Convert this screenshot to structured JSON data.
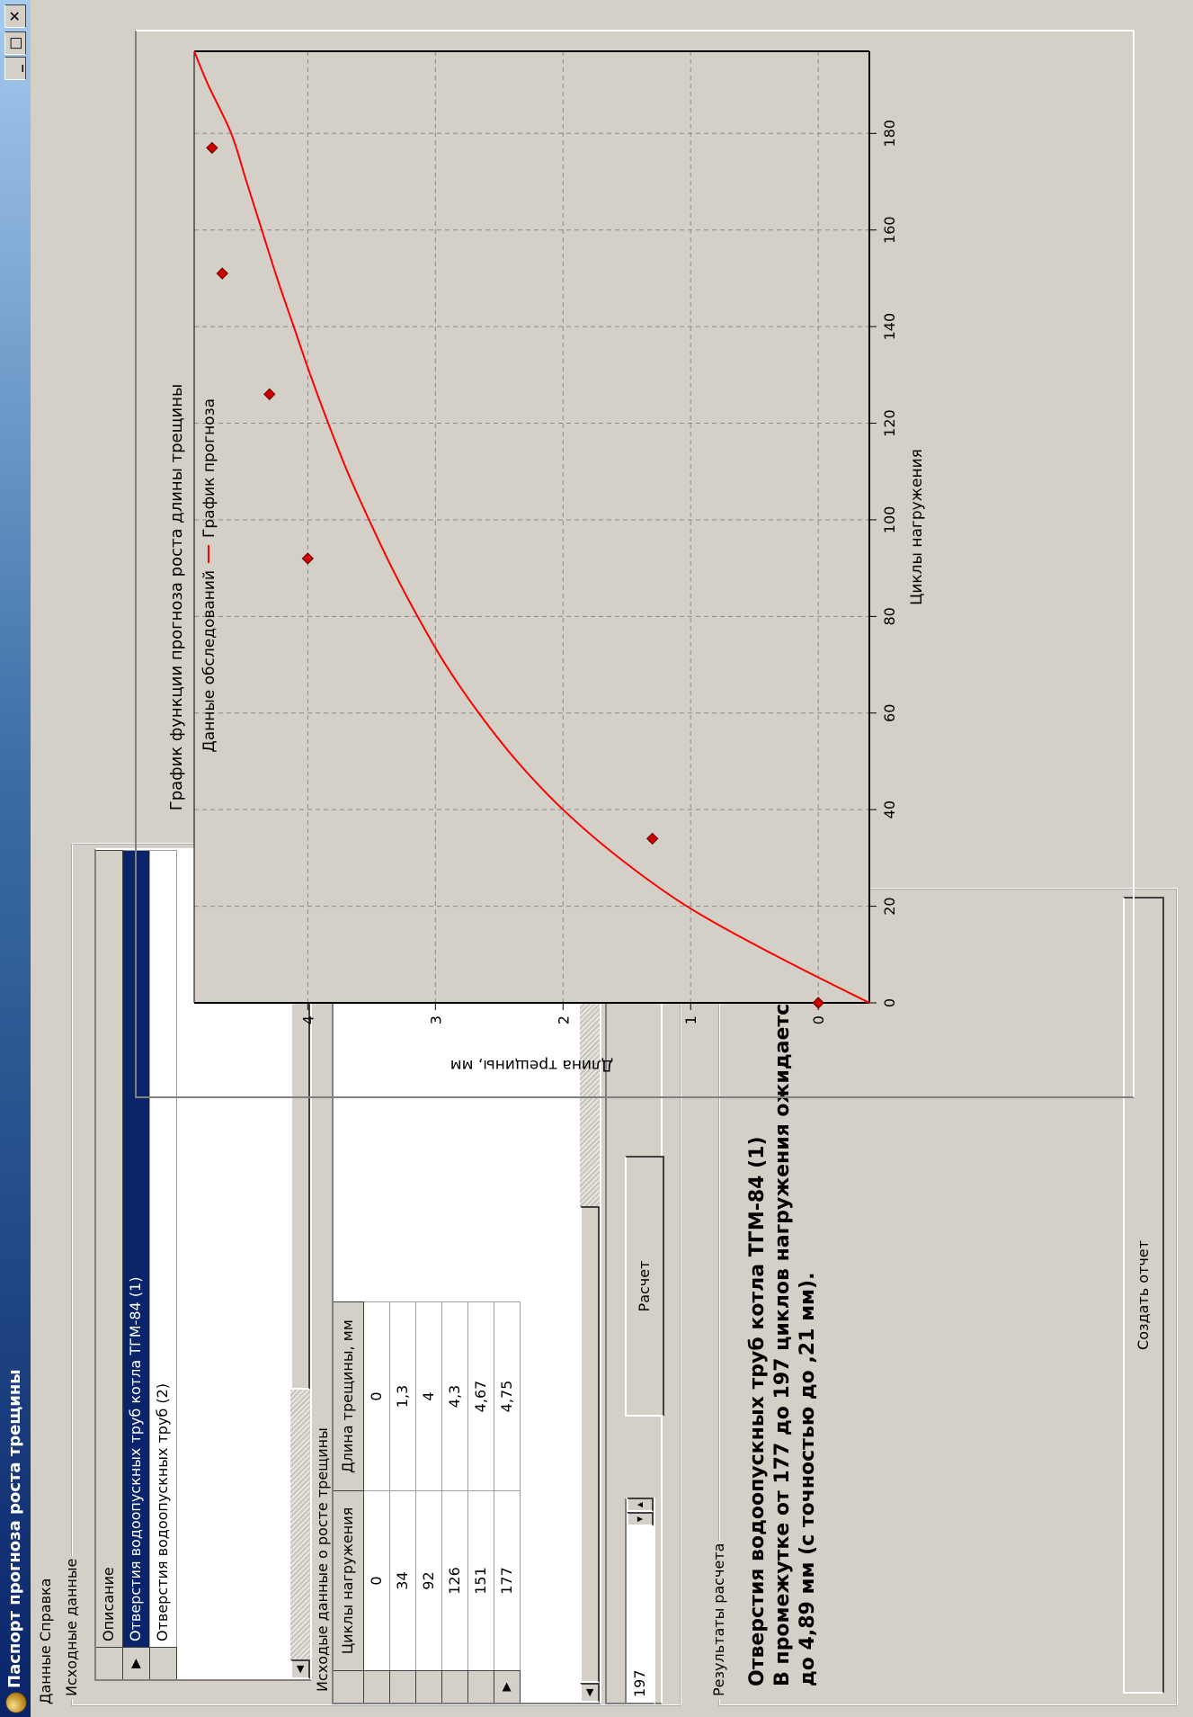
{
  "window": {
    "title": "Паспорт прогноза роста трещины"
  },
  "menu": [
    "Данные",
    "Справка"
  ],
  "source_group": {
    "label": "Исходные данные",
    "column_header": "Описание",
    "rows": [
      "Отверстия водоопускных труб котла ТГМ-84 (1)",
      "Отверстия водоопускных труб (2)"
    ]
  },
  "grid": {
    "label": "Исходые данные о росте трещины",
    "headers": [
      "Циклы нагружения",
      "Длина трещины, мм"
    ],
    "rows": [
      [
        "0",
        "0"
      ],
      [
        "34",
        "1,3"
      ],
      [
        "92",
        "4"
      ],
      [
        "126",
        "4,3"
      ],
      [
        "151",
        "4,67"
      ],
      [
        "177",
        "4,75"
      ]
    ]
  },
  "cycles_spin": {
    "value": "197"
  },
  "buttons": {
    "calc": "Расчет",
    "report": "Создать отчет"
  },
  "results": {
    "label": "Результаты расчета",
    "text": "Отверстия водоопускных труб котла ТГМ-84 (1)\nВ промежутке от 177 до 197 циклов нагружения ожидается рост трещины до 4,89 мм (с точностью до ,21 мм)."
  },
  "chart_data": {
    "type": "scatter",
    "title": "График функции прогноза роста длины трещины",
    "xlabel": "Циклы нагружения",
    "ylabel": "Длина трещины, мм",
    "xlim": [
      0,
      197
    ],
    "ylim": [
      -0.4,
      4.89
    ],
    "xticks": [
      0,
      20,
      40,
      60,
      80,
      100,
      120,
      140,
      160,
      180
    ],
    "yticks": [
      0,
      1,
      2,
      3,
      4
    ],
    "grid": true,
    "legend_position": "top",
    "series": [
      {
        "name": "Данные обследований",
        "kind": "points",
        "color": "#cc0000",
        "x": [
          0,
          34,
          92,
          126,
          151,
          177
        ],
        "y": [
          0,
          1.3,
          4,
          4.3,
          4.67,
          4.75
        ]
      },
      {
        "name": "График прогноза",
        "kind": "line",
        "color": "#ff0000",
        "x": [
          0,
          10,
          20,
          30,
          40,
          50,
          60,
          70,
          80,
          90,
          100,
          110,
          120,
          130,
          140,
          150,
          160,
          170,
          180,
          190,
          197
        ],
        "y": [
          -0.4,
          0.35,
          1.03,
          1.56,
          2.0,
          2.36,
          2.66,
          2.92,
          3.14,
          3.34,
          3.52,
          3.69,
          3.84,
          3.98,
          4.11,
          4.24,
          4.36,
          4.48,
          4.6,
          4.78,
          4.89
        ]
      }
    ]
  }
}
